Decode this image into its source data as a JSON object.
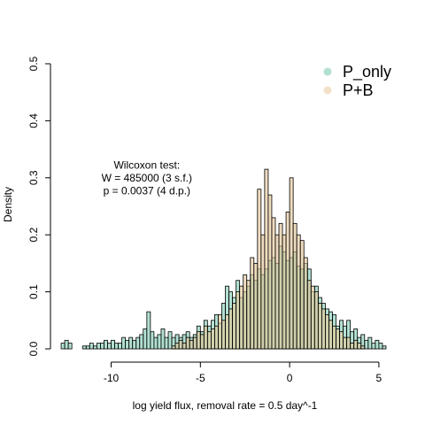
{
  "chart_data": {
    "type": "histogram",
    "title": "",
    "xlabel": "log yield flux, removal rate = 0.5 day^-1",
    "ylabel": "Density",
    "xlim": [
      -13.2,
      5.6
    ],
    "ylim": [
      0,
      0.5
    ],
    "x_ticks": [
      -10,
      -5,
      0,
      5
    ],
    "x_tick_labels": [
      "-10",
      "-5",
      "0",
      "5"
    ],
    "y_ticks": [
      0.0,
      0.1,
      0.2,
      0.3,
      0.4,
      0.5
    ],
    "y_tick_labels": [
      "0.0",
      "0.1",
      "0.2",
      "0.3",
      "0.4",
      "0.5"
    ],
    "grid": false,
    "legend_position": "top-right",
    "annotation": [
      "Wilcoxon test:",
      "W = 485000 (3 s.f.)",
      "p = 0.0037 (4 d.p.)"
    ],
    "annotation_center": {
      "x": -8.0,
      "y": 0.3
    },
    "bin_width": 0.2,
    "series": [
      {
        "name": "P_only",
        "color": "#66c2a5",
        "alpha": 0.5,
        "bins": [
          [
            -12.8,
            0.01
          ],
          [
            -12.6,
            0.015
          ],
          [
            -12.4,
            0.01
          ],
          [
            -11.6,
            0.005
          ],
          [
            -11.4,
            0.005
          ],
          [
            -11.2,
            0.01
          ],
          [
            -11.0,
            0.005
          ],
          [
            -10.8,
            0.01
          ],
          [
            -10.6,
            0.01
          ],
          [
            -10.4,
            0.015
          ],
          [
            -10.2,
            0.01
          ],
          [
            -10.0,
            0.015
          ],
          [
            -9.8,
            0.01
          ],
          [
            -9.6,
            0.01
          ],
          [
            -9.4,
            0.02
          ],
          [
            -9.2,
            0.015
          ],
          [
            -9.0,
            0.02
          ],
          [
            -8.8,
            0.015
          ],
          [
            -8.6,
            0.02
          ],
          [
            -8.4,
            0.025
          ],
          [
            -8.2,
            0.035
          ],
          [
            -8.0,
            0.065
          ],
          [
            -7.8,
            0.03
          ],
          [
            -7.6,
            0.02
          ],
          [
            -7.4,
            0.025
          ],
          [
            -7.2,
            0.035
          ],
          [
            -7.0,
            0.02
          ],
          [
            -6.8,
            0.03
          ],
          [
            -6.6,
            0.02
          ],
          [
            -6.4,
            0.025
          ],
          [
            -6.2,
            0.02
          ],
          [
            -6.0,
            0.025
          ],
          [
            -5.8,
            0.03
          ],
          [
            -5.6,
            0.02
          ],
          [
            -5.4,
            0.025
          ],
          [
            -5.2,
            0.04
          ],
          [
            -5.0,
            0.03
          ],
          [
            -4.8,
            0.05
          ],
          [
            -4.6,
            0.04
          ],
          [
            -4.4,
            0.05
          ],
          [
            -4.2,
            0.06
          ],
          [
            -4.0,
            0.045
          ],
          [
            -3.8,
            0.08
          ],
          [
            -3.6,
            0.11
          ],
          [
            -3.4,
            0.1
          ],
          [
            -3.2,
            0.09
          ],
          [
            -3.0,
            0.12
          ],
          [
            -2.8,
            0.09
          ],
          [
            -2.6,
            0.1
          ],
          [
            -2.4,
            0.11
          ],
          [
            -2.2,
            0.13
          ],
          [
            -2.0,
            0.12
          ],
          [
            -1.8,
            0.14
          ],
          [
            -1.6,
            0.13
          ],
          [
            -1.4,
            0.14
          ],
          [
            -1.2,
            0.155
          ],
          [
            -1.0,
            0.16
          ],
          [
            -0.8,
            0.15
          ],
          [
            -0.6,
            0.18
          ],
          [
            -0.4,
            0.17
          ],
          [
            -0.2,
            0.155
          ],
          [
            0.0,
            0.16
          ],
          [
            0.2,
            0.17
          ],
          [
            0.4,
            0.145
          ],
          [
            0.6,
            0.14
          ],
          [
            0.8,
            0.15
          ],
          [
            1.0,
            0.14
          ],
          [
            1.2,
            0.1
          ],
          [
            1.4,
            0.11
          ],
          [
            1.6,
            0.09
          ],
          [
            1.8,
            0.08
          ],
          [
            2.0,
            0.07
          ],
          [
            2.2,
            0.065
          ],
          [
            2.4,
            0.06
          ],
          [
            2.6,
            0.04
          ],
          [
            2.8,
            0.05
          ],
          [
            3.0,
            0.04
          ],
          [
            3.2,
            0.05
          ],
          [
            3.4,
            0.03
          ],
          [
            3.6,
            0.035
          ],
          [
            3.8,
            0.02
          ],
          [
            4.0,
            0.025
          ],
          [
            4.2,
            0.015
          ],
          [
            4.4,
            0.02
          ],
          [
            4.6,
            0.01
          ],
          [
            4.8,
            0.015
          ],
          [
            5.0,
            0.01
          ],
          [
            5.2,
            0.005
          ]
        ]
      },
      {
        "name": "P+B",
        "color": "#e5c494",
        "alpha": 0.6,
        "bins": [
          [
            -6.6,
            0.005
          ],
          [
            -6.4,
            0.01
          ],
          [
            -6.2,
            0.015
          ],
          [
            -6.0,
            0.01
          ],
          [
            -5.8,
            0.02
          ],
          [
            -5.6,
            0.015
          ],
          [
            -5.4,
            0.02
          ],
          [
            -5.2,
            0.03
          ],
          [
            -5.0,
            0.025
          ],
          [
            -4.8,
            0.04
          ],
          [
            -4.6,
            0.03
          ],
          [
            -4.4,
            0.035
          ],
          [
            -4.2,
            0.04
          ],
          [
            -4.0,
            0.06
          ],
          [
            -3.8,
            0.05
          ],
          [
            -3.6,
            0.06
          ],
          [
            -3.4,
            0.07
          ],
          [
            -3.2,
            0.08
          ],
          [
            -3.0,
            0.1
          ],
          [
            -2.8,
            0.11
          ],
          [
            -2.6,
            0.13
          ],
          [
            -2.4,
            0.12
          ],
          [
            -2.2,
            0.16
          ],
          [
            -2.0,
            0.15
          ],
          [
            -1.8,
            0.28
          ],
          [
            -1.6,
            0.2
          ],
          [
            -1.4,
            0.315
          ],
          [
            -1.2,
            0.27
          ],
          [
            -1.0,
            0.23
          ],
          [
            -0.8,
            0.2
          ],
          [
            -0.6,
            0.22
          ],
          [
            -0.4,
            0.2
          ],
          [
            -0.2,
            0.24
          ],
          [
            0.0,
            0.3
          ],
          [
            0.2,
            0.22
          ],
          [
            0.4,
            0.2
          ],
          [
            0.6,
            0.19
          ],
          [
            0.8,
            0.16
          ],
          [
            1.0,
            0.12
          ],
          [
            1.2,
            0.11
          ],
          [
            1.4,
            0.1
          ],
          [
            1.6,
            0.08
          ],
          [
            1.8,
            0.07
          ],
          [
            2.0,
            0.06
          ],
          [
            2.2,
            0.05
          ],
          [
            2.4,
            0.04
          ],
          [
            2.6,
            0.035
          ],
          [
            2.8,
            0.03
          ],
          [
            3.0,
            0.02
          ],
          [
            3.2,
            0.02
          ],
          [
            3.4,
            0.01
          ],
          [
            3.6,
            0.015
          ],
          [
            3.8,
            0.01
          ],
          [
            4.0,
            0.005
          ]
        ]
      }
    ]
  }
}
